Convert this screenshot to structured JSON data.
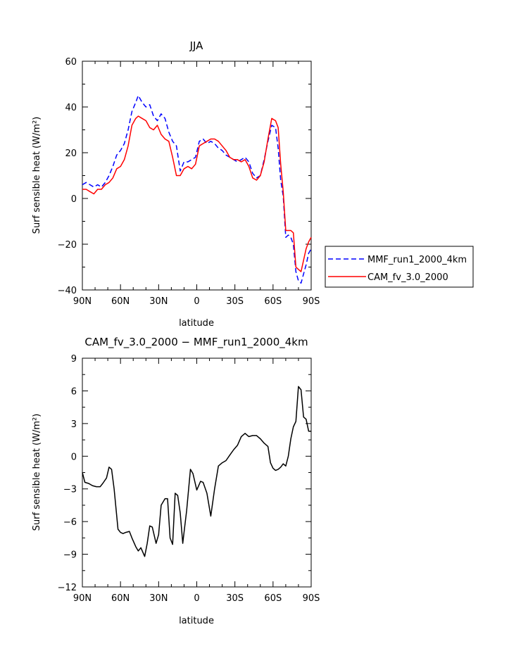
{
  "chart_data": [
    {
      "type": "line",
      "title": "JJA",
      "xlabel": "latitude",
      "ylabel": "Surf sensible heat (W/m²)",
      "xlim": [
        90,
        -90
      ],
      "ylim": [
        -40,
        60
      ],
      "x_ticks": [
        90,
        60,
        30,
        0,
        -30,
        -60,
        -90
      ],
      "x_tick_labels": [
        "90N",
        "60N",
        "30N",
        "0",
        "30S",
        "60S",
        "90S"
      ],
      "y_ticks": [
        -40,
        -20,
        0,
        20,
        40,
        60
      ],
      "y_tick_labels": [
        "−40",
        "−20",
        "0",
        "20",
        "40",
        "60"
      ],
      "legend_placement": "right",
      "series": [
        {
          "name": "MMF_run1_2000_4km",
          "color": "#0000ff",
          "dash": "dashed",
          "x": [
            90,
            87,
            84,
            81,
            78,
            75,
            72,
            69,
            66,
            63,
            60,
            57,
            54,
            51,
            48,
            46,
            43,
            40,
            37,
            34,
            31,
            28,
            25,
            22,
            19,
            16,
            13,
            10,
            7,
            4,
            1,
            -2,
            -5,
            -8,
            -11,
            -14,
            -17,
            -20,
            -23,
            -26,
            -29,
            -32,
            -35,
            -38,
            -41,
            -44,
            -47,
            -50,
            -53,
            -56,
            -59,
            -62,
            -64,
            -66,
            -68,
            -70,
            -72,
            -74,
            -76,
            -78,
            -80,
            -82,
            -84,
            -86,
            -88,
            -90
          ],
          "values": [
            6,
            7,
            6,
            5,
            6,
            5,
            7,
            10,
            14,
            19,
            21,
            24,
            30,
            38,
            42,
            45,
            42,
            40,
            41,
            36,
            34,
            37,
            35,
            29,
            25,
            23,
            12,
            16,
            16,
            17,
            18,
            25,
            26,
            24,
            25,
            24,
            22,
            21,
            19,
            18,
            17,
            16,
            17,
            18,
            16,
            11,
            9,
            10,
            17,
            25,
            32,
            31,
            22,
            8,
            1,
            -17,
            -16,
            -17,
            -20,
            -32,
            -36,
            -37,
            -33,
            -29,
            -24,
            -22
          ]
        },
        {
          "name": "CAM_fv_3.0_2000",
          "color": "#ff0000",
          "dash": "solid",
          "x": [
            90,
            87,
            84,
            81,
            78,
            75,
            72,
            69,
            66,
            63,
            60,
            57,
            54,
            51,
            48,
            46,
            43,
            40,
            37,
            34,
            31,
            28,
            25,
            22,
            19,
            16,
            13,
            10,
            7,
            4,
            1,
            -2,
            -5,
            -8,
            -11,
            -14,
            -17,
            -20,
            -23,
            -26,
            -29,
            -32,
            -35,
            -38,
            -41,
            -44,
            -47,
            -50,
            -53,
            -56,
            -59,
            -62,
            -64,
            -66,
            -68,
            -70,
            -72,
            -74,
            -76,
            -78,
            -80,
            -82,
            -84,
            -86,
            -88,
            -90
          ],
          "values": [
            4,
            4,
            3,
            2,
            4,
            4,
            6,
            7,
            9,
            13,
            14,
            17,
            23,
            32,
            35,
            36,
            35,
            34,
            31,
            30,
            32,
            28,
            26,
            25,
            18,
            10,
            10,
            13,
            14,
            13,
            15,
            23,
            24,
            25,
            26,
            26,
            25,
            23,
            21,
            18,
            17,
            17,
            16,
            17,
            14,
            9,
            8,
            10,
            16,
            26,
            35,
            34,
            31,
            15,
            3,
            -14,
            -14,
            -14,
            -15,
            -30,
            -31,
            -32,
            -27,
            -22,
            -19,
            -17
          ]
        }
      ]
    },
    {
      "type": "line",
      "title": "CAM_fv_3.0_2000 − MMF_run1_2000_4km",
      "xlabel": "latitude",
      "ylabel": "Surf sensible heat (W/m²)",
      "xlim": [
        90,
        -90
      ],
      "ylim": [
        -12,
        9
      ],
      "x_ticks": [
        90,
        60,
        30,
        0,
        -30,
        -60,
        -90
      ],
      "x_tick_labels": [
        "90N",
        "60N",
        "30N",
        "0",
        "30S",
        "60S",
        "90S"
      ],
      "y_ticks": [
        -12,
        -9,
        -6,
        -3,
        0,
        3,
        6,
        9
      ],
      "y_tick_labels": [
        "−12",
        "−9",
        "−6",
        "−3",
        "0",
        "3",
        "6",
        "9"
      ],
      "series": [
        {
          "color": "#000000",
          "dash": "solid",
          "x": [
            90,
            88,
            85,
            82,
            79,
            76,
            74,
            71,
            69,
            67,
            65,
            62,
            60,
            58,
            56,
            53,
            51,
            48,
            46,
            44,
            41,
            39,
            37,
            35,
            32,
            30,
            28,
            25,
            23,
            21,
            19,
            17,
            15,
            13,
            11,
            10,
            8,
            5,
            3,
            0,
            -3,
            -5,
            -8,
            -11,
            -14,
            -17,
            -20,
            -23,
            -26,
            -29,
            -32,
            -35,
            -38,
            -41,
            -44,
            -47,
            -50,
            -53,
            -56,
            -58,
            -60,
            -62,
            -64,
            -66,
            -68,
            -70,
            -72,
            -74,
            -76,
            -78,
            -80,
            -82,
            -84,
            -86,
            -88,
            -90
          ],
          "values": [
            -1.5,
            -2.4,
            -2.5,
            -2.7,
            -2.8,
            -2.8,
            -2.5,
            -2.0,
            -1.0,
            -1.2,
            -3.0,
            -6.7,
            -7.0,
            -7.1,
            -7.0,
            -6.9,
            -7.5,
            -8.3,
            -8.7,
            -8.4,
            -9.2,
            -8.0,
            -6.4,
            -6.5,
            -8.0,
            -7.2,
            -4.5,
            -3.9,
            -3.9,
            -7.5,
            -8.1,
            -3.4,
            -3.6,
            -5.2,
            -8.0,
            -7.0,
            -5.0,
            -1.2,
            -1.6,
            -3.1,
            -2.3,
            -2.4,
            -3.4,
            -5.5,
            -3.0,
            -0.9,
            -0.6,
            -0.4,
            0.1,
            0.6,
            1.0,
            1.8,
            2.1,
            1.8,
            1.9,
            1.9,
            1.6,
            1.2,
            0.9,
            -0.6,
            -1.1,
            -1.3,
            -1.2,
            -1.0,
            -0.7,
            -0.9,
            0.0,
            1.6,
            2.7,
            3.2,
            6.4,
            6.1,
            3.6,
            3.4,
            2.3,
            2.3
          ]
        }
      ]
    }
  ]
}
